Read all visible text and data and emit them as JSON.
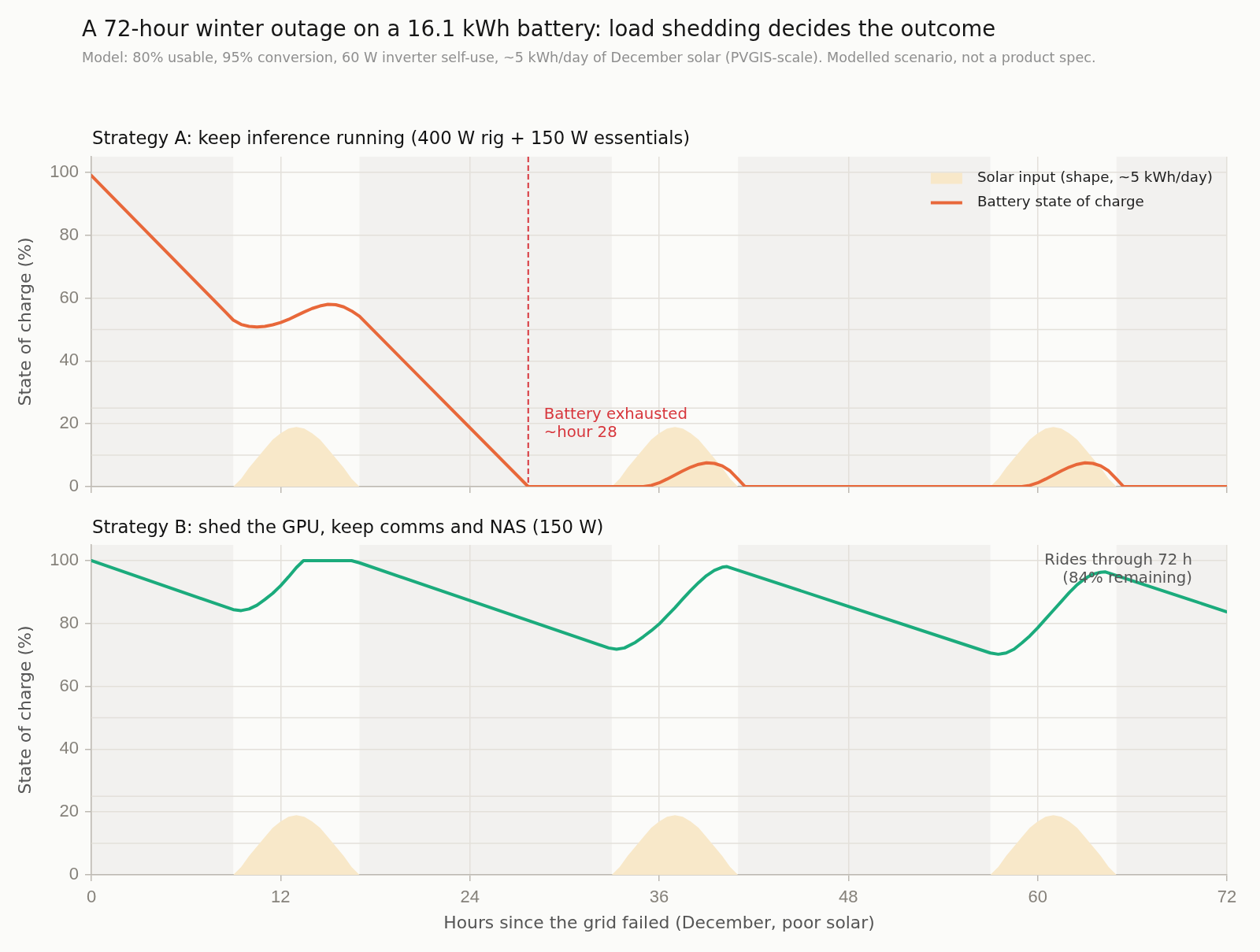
{
  "chart_data": [
    {
      "type": "line",
      "title": "A 72-hour winter outage on a 16.1 kWh battery: load shedding decides the outcome",
      "subtitle": "Model: 80% usable, 95% conversion, 60 W inverter self-use, ~5 kWh/day of December solar (PVGIS-scale). Modelled scenario, not a product spec.",
      "annotations": [
        "Strategy A: keep inference running (400 W rig + 150 W essentials)"
      ],
      "ylabel": "State of charge (%)",
      "xlim": [
        0,
        72
      ],
      "xticks": [
        0,
        12,
        24,
        36,
        48,
        60,
        72
      ],
      "ylim": [
        0,
        105
      ],
      "yticks": [
        0,
        20,
        40,
        60,
        80,
        100
      ],
      "tick_labels": "y",
      "grid": true,
      "legend": "top right",
      "bands": [
        {
          "axis": "x",
          "from": 0,
          "to": 9,
          "color": "#f2f1ef"
        },
        {
          "axis": "x",
          "from": 17,
          "to": 33,
          "color": "#f2f1ef"
        },
        {
          "axis": "x",
          "from": 41,
          "to": 57,
          "color": "#f2f1ef"
        },
        {
          "axis": "x",
          "from": 65,
          "to": 72,
          "color": "#f2f1ef"
        }
      ],
      "ref_lines": [
        {
          "axis": "y",
          "value": 10,
          "color": "#e3e0da",
          "line_style": "solid"
        },
        {
          "axis": "y",
          "value": 25,
          "color": "#e3e0da",
          "line_style": "solid"
        },
        {
          "axis": "y",
          "value": 50,
          "color": "#e3e0da",
          "line_style": "solid"
        },
        {
          "axis": "x",
          "value": 27.7,
          "label": "Battery exhausted\n~hour 28",
          "color": "#d7363c",
          "line_style": "dashed"
        }
      ],
      "series": [
        {
          "name": "Solar input (shape, ~5 kWh/day)",
          "type": "area",
          "color": "#f8e8c9",
          "x": [
            9,
            9.5,
            10,
            10.5,
            11,
            11.5,
            12,
            12.5,
            13,
            13.5,
            14,
            14.5,
            15,
            15.5,
            16,
            16.5,
            17,
            33,
            33.5,
            34,
            34.5,
            35,
            35.5,
            36,
            36.5,
            37,
            37.5,
            38,
            38.5,
            39,
            39.5,
            40,
            40.5,
            41,
            57,
            57.5,
            58,
            58.5,
            59,
            59.5,
            60,
            60.5,
            61,
            61.5,
            62,
            62.5,
            63,
            63.5,
            64,
            64.5,
            65
          ],
          "values": [
            0,
            2.5,
            6,
            9,
            12,
            15,
            17,
            18.5,
            19,
            18.5,
            17,
            15,
            12,
            9,
            6,
            2.5,
            0,
            0,
            2.5,
            6,
            9,
            12,
            15,
            17,
            18.5,
            19,
            18.5,
            17,
            15,
            12,
            9,
            6,
            2.5,
            0,
            0,
            2.5,
            6,
            9,
            12,
            15,
            17,
            18.5,
            19,
            18.5,
            17,
            15,
            12,
            9,
            6,
            2.5,
            0
          ]
        },
        {
          "name": "Battery state of charge",
          "type": "line",
          "color": "#e8683a",
          "x": [
            0,
            8.5,
            9,
            9.5,
            10,
            10.5,
            11,
            11.5,
            12,
            12.5,
            13,
            13.5,
            14,
            14.5,
            15,
            15.5,
            16,
            16.5,
            17,
            27.7,
            35,
            35.5,
            36,
            36.5,
            37,
            37.5,
            38,
            38.5,
            39,
            39.5,
            40,
            40.5,
            41,
            41.45,
            59,
            59.5,
            60,
            60.5,
            61,
            61.5,
            62,
            62.5,
            63,
            63.5,
            64,
            64.5,
            65,
            65.45,
            72
          ],
          "values": [
            99,
            55.6,
            53,
            51.6,
            51,
            50.8,
            51,
            51.5,
            52.2,
            53.2,
            54.4,
            55.6,
            56.7,
            57.5,
            58,
            57.9,
            57.2,
            55.9,
            54.2,
            0,
            0,
            0.4,
            1.2,
            2.4,
            3.7,
            5,
            6.2,
            7.1,
            7.6,
            7.4,
            6.6,
            5,
            2.4,
            0,
            0,
            0.4,
            1.2,
            2.4,
            3.7,
            5,
            6.2,
            7.1,
            7.6,
            7.4,
            6.6,
            5,
            2.4,
            0,
            0
          ]
        }
      ]
    },
    {
      "type": "line",
      "annotations": [
        "Strategy B: shed the GPU, keep comms and NAS (150 W)",
        "Rides through 72 h\n(84% remaining)"
      ],
      "xlabel": "Hours since the grid failed (December, poor solar)",
      "ylabel": "State of charge (%)",
      "xlim": [
        0,
        72
      ],
      "xticks": [
        0,
        12,
        24,
        36,
        48,
        60,
        72
      ],
      "ylim": [
        0,
        105
      ],
      "yticks": [
        0,
        20,
        40,
        60,
        80,
        100
      ],
      "grid": true,
      "bands": [
        {
          "axis": "x",
          "from": 0,
          "to": 9,
          "color": "#f2f1ef"
        },
        {
          "axis": "x",
          "from": 17,
          "to": 33,
          "color": "#f2f1ef"
        },
        {
          "axis": "x",
          "from": 41,
          "to": 57,
          "color": "#f2f1ef"
        },
        {
          "axis": "x",
          "from": 65,
          "to": 72,
          "color": "#f2f1ef"
        }
      ],
      "ref_lines": [
        {
          "axis": "y",
          "value": 10,
          "color": "#e3e0da",
          "line_style": "solid"
        },
        {
          "axis": "y",
          "value": 25,
          "color": "#e3e0da",
          "line_style": "solid"
        },
        {
          "axis": "y",
          "value": 50,
          "color": "#e3e0da",
          "line_style": "solid"
        }
      ],
      "series": [
        {
          "type": "area",
          "color": "#f8e8c9",
          "x": [
            9,
            9.5,
            10,
            10.5,
            11,
            11.5,
            12,
            12.5,
            13,
            13.5,
            14,
            14.5,
            15,
            15.5,
            16,
            16.5,
            17,
            33,
            33.5,
            34,
            34.5,
            35,
            35.5,
            36,
            36.5,
            37,
            37.5,
            38,
            38.5,
            39,
            39.5,
            40,
            40.5,
            41,
            57,
            57.5,
            58,
            58.5,
            59,
            59.5,
            60,
            60.5,
            61,
            61.5,
            62,
            62.5,
            63,
            63.5,
            64,
            64.5,
            65
          ],
          "values": [
            0,
            2.5,
            6,
            9,
            12,
            15,
            17,
            18.5,
            19,
            18.5,
            17,
            15,
            12,
            9,
            6,
            2.5,
            0,
            0,
            2.5,
            6,
            9,
            12,
            15,
            17,
            18.5,
            19,
            18.5,
            17,
            15,
            12,
            9,
            6,
            2.5,
            0,
            0,
            2.5,
            6,
            9,
            12,
            15,
            17,
            18.5,
            19,
            18.5,
            17,
            15,
            12,
            9,
            6,
            2.5,
            0
          ]
        },
        {
          "type": "line",
          "color": "#1bab7c",
          "x": [
            0,
            9,
            9.5,
            10,
            10.5,
            11,
            11.5,
            12,
            12.5,
            13,
            13.45,
            16.5,
            17,
            32.8,
            33.3,
            33.8,
            34.5,
            35,
            35.5,
            36,
            36.5,
            37,
            37.5,
            38,
            38.5,
            39,
            39.5,
            40,
            40.3,
            57,
            57.5,
            58,
            58.5,
            59,
            59.5,
            60,
            60.5,
            61,
            61.5,
            62,
            62.5,
            63,
            63.5,
            64,
            64.3,
            72
          ],
          "values": [
            100,
            84.4,
            84.1,
            84.6,
            85.8,
            87.6,
            89.6,
            92,
            94.8,
            97.8,
            100,
            100,
            99.3,
            72.2,
            71.8,
            72.2,
            74,
            75.8,
            77.7,
            79.8,
            82.4,
            85,
            87.8,
            90.5,
            93,
            95.2,
            96.9,
            97.9,
            98.1,
            70.6,
            70.2,
            70.6,
            71.8,
            73.8,
            76,
            78.6,
            81.4,
            84.2,
            87,
            89.8,
            92.3,
            94.3,
            95.7,
            96.3,
            96.4,
            83.7
          ]
        }
      ]
    }
  ]
}
